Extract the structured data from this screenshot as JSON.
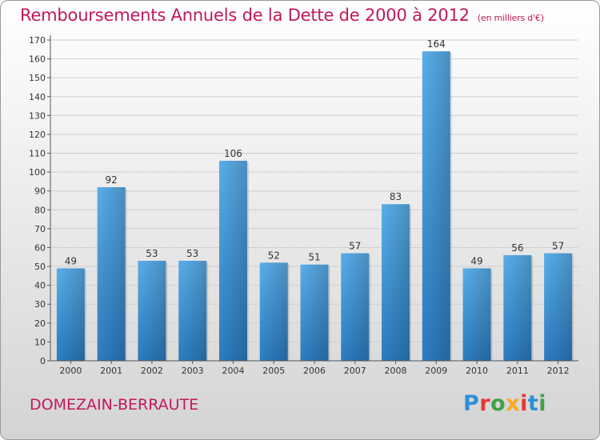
{
  "chart_data": {
    "type": "bar",
    "title": "Remboursements Annuels de la Dette de 2000 à 2012",
    "unit": "(en milliers d'€)",
    "categories": [
      "2000",
      "2001",
      "2002",
      "2003",
      "2004",
      "2005",
      "2006",
      "2007",
      "2008",
      "2009",
      "2010",
      "2011",
      "2012"
    ],
    "values": [
      49,
      92,
      53,
      53,
      106,
      52,
      51,
      57,
      83,
      164,
      49,
      56,
      57
    ],
    "ylim": [
      0,
      170
    ],
    "yticks": [
      0,
      10,
      20,
      30,
      40,
      50,
      60,
      70,
      80,
      90,
      100,
      110,
      120,
      130,
      140,
      150,
      160,
      170
    ],
    "grid": true,
    "xlabel": "",
    "ylabel": "",
    "bar_color": "#3d91d6"
  },
  "footer": {
    "region": "DOMEZAIN-BERRAUTE",
    "logo": "Proxiti"
  },
  "colors": {
    "title": "#c2185b",
    "logo_letters": [
      "#2e8fd6",
      "#e53935",
      "#43a047",
      "#f9a825",
      "#e53935",
      "#2e8fd6",
      "#43a047"
    ]
  }
}
